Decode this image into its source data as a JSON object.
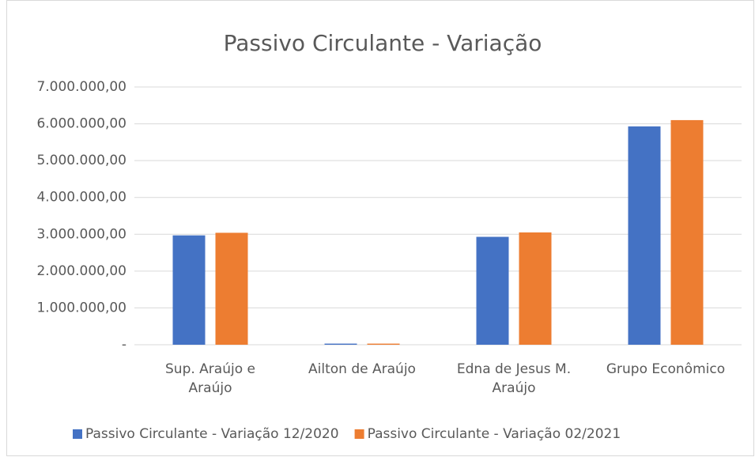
{
  "chart_data": {
    "type": "bar",
    "title": "Passivo Circulante - Variação",
    "categories": [
      "Sup. Araújo e Araújo",
      "Ailton de Araújo",
      "Edna de Jesus M. Araújo",
      "Grupo Econômico"
    ],
    "series": [
      {
        "name": "Passivo Circulante - Variação 12/2020",
        "color": "#4472c4",
        "values": [
          2970000,
          30000,
          2930000,
          5930000
        ]
      },
      {
        "name": "Passivo Circulante - Variação 02/2021",
        "color": "#ed7d31",
        "values": [
          3040000,
          30000,
          3050000,
          6100000
        ]
      }
    ],
    "ylim": [
      0,
      7000000
    ],
    "yticks": [
      {
        "value": 0,
        "label": "-"
      },
      {
        "value": 1000000,
        "label": "1.000.000,00"
      },
      {
        "value": 2000000,
        "label": "2.000.000,00"
      },
      {
        "value": 3000000,
        "label": "3.000.000,00"
      },
      {
        "value": 4000000,
        "label": "4.000.000,00"
      },
      {
        "value": 5000000,
        "label": "5.000.000,00"
      },
      {
        "value": 6000000,
        "label": "6.000.000,00"
      },
      {
        "value": 7000000,
        "label": "7.000.000,00"
      }
    ],
    "grid": true,
    "legend": "bottom"
  }
}
